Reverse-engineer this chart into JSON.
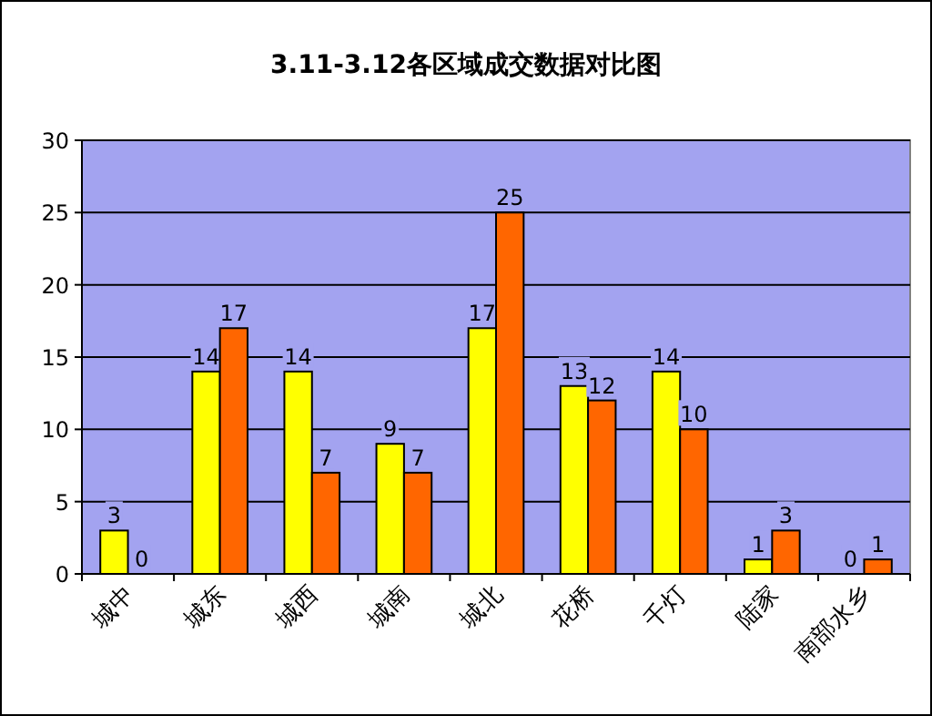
{
  "chart_data": {
    "type": "bar",
    "title": "3.11-3.12各区域成交数据对比图",
    "categories": [
      "城中",
      "城东",
      "城西",
      "城南",
      "城北",
      "花桥",
      "千灯",
      "陆家",
      "南部水乡"
    ],
    "series": [
      {
        "color": "#ffff00",
        "values": [
          3,
          14,
          14,
          9,
          17,
          13,
          14,
          1,
          0
        ]
      },
      {
        "color": "#ff6600",
        "values": [
          0,
          17,
          7,
          7,
          25,
          12,
          10,
          3,
          1
        ]
      }
    ],
    "ylim": [
      0,
      30
    ],
    "yticks": [
      0,
      5,
      10,
      15,
      20,
      25,
      30
    ],
    "grid": "y",
    "data_labels": true
  }
}
